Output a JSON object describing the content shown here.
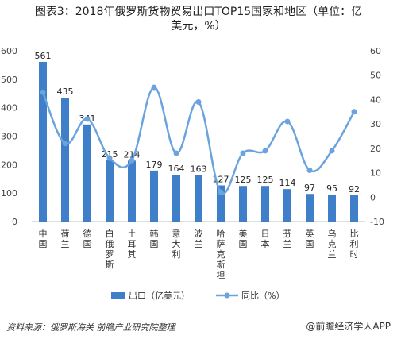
{
  "title_line1": "图表3：2018年俄罗斯货物贸易出口TOP15国家和地区（单位：亿",
  "title_line2": "美元，%）",
  "chart_data": {
    "type": "bar",
    "title": "图表3：2018年俄罗斯货物贸易出口TOP15国家和地区（单位：亿美元，%）",
    "categories": [
      "中国",
      "荷兰",
      "德国",
      "白俄罗斯",
      "土耳其",
      "韩国",
      "意大利",
      "波兰",
      "哈萨克斯坦",
      "美国",
      "日本",
      "芬兰",
      "英国",
      "乌克兰",
      "比利时"
    ],
    "series": [
      {
        "name": "出口（亿美元）",
        "type": "bar",
        "axis": "left",
        "color": "#3f7fc9",
        "values": [
          561,
          435,
          341,
          215,
          214,
          179,
          164,
          163,
          127,
          125,
          125,
          114,
          97,
          95,
          92
        ]
      },
      {
        "name": "同比（%）",
        "type": "line",
        "axis": "right",
        "color": "#6aa3dd",
        "values": [
          43,
          22,
          32,
          16,
          15,
          45,
          18,
          39,
          2,
          18,
          19,
          31,
          11,
          19,
          35
        ]
      }
    ],
    "y_left": {
      "min": 0,
      "max": 600,
      "ticks": [
        0,
        100,
        200,
        300,
        400,
        500,
        600
      ]
    },
    "y_right": {
      "min": -10,
      "max": 60,
      "ticks": [
        -10,
        0,
        10,
        20,
        30,
        40,
        50,
        60
      ]
    },
    "legend_position": "bottom",
    "grid": false
  },
  "legend": {
    "bar_label": "出口（亿美元）",
    "line_label": "同比（%）"
  },
  "footer": {
    "source": "资料来源：俄罗斯海关 前瞻产业研究院整理",
    "brand": "@前瞻经济学人APP"
  },
  "colors": {
    "bar": "#3f7fc9",
    "line": "#6aa3dd"
  }
}
